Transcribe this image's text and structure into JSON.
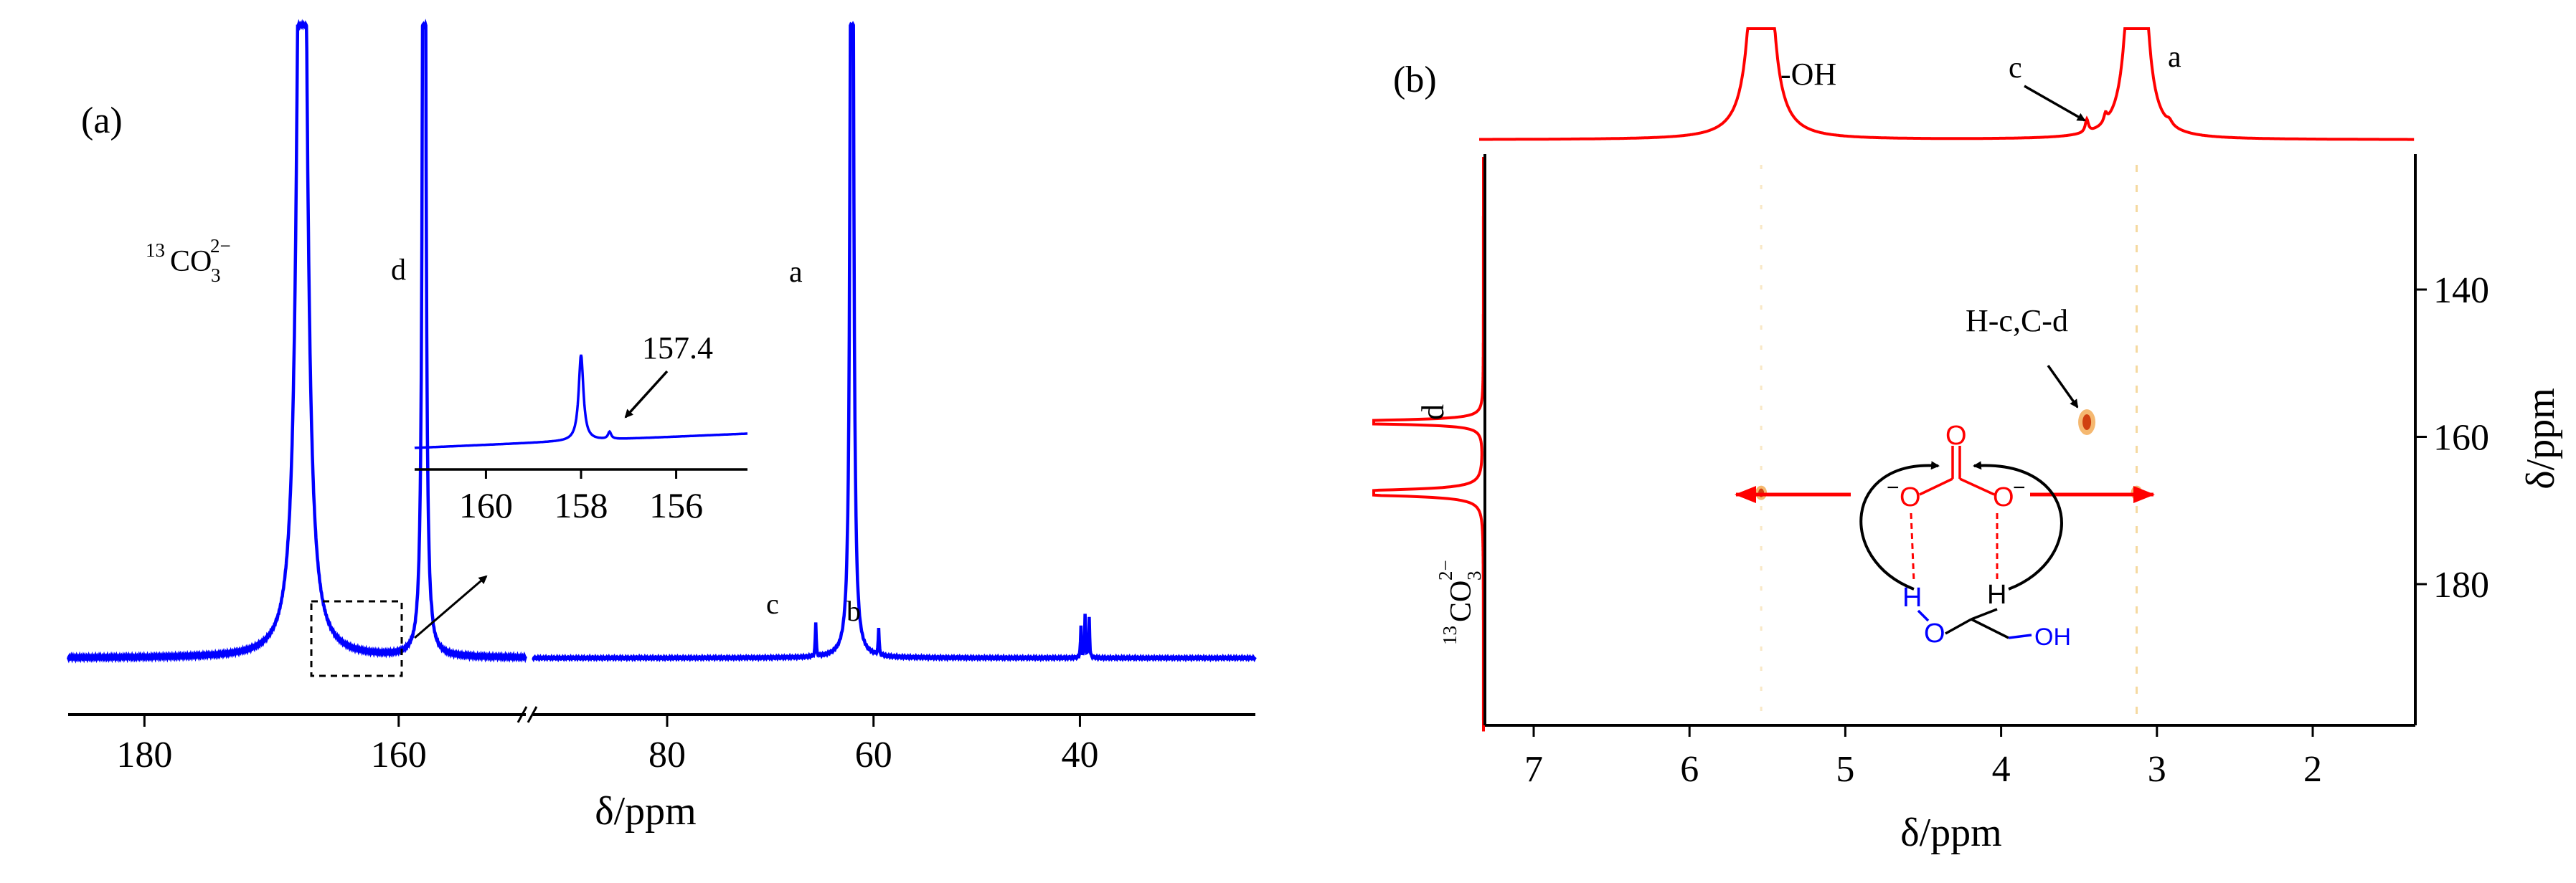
{
  "chart_data": [
    {
      "panel_label": "(a)",
      "type": "line",
      "xlabel": "δ/ppm",
      "x_ticks": [
        180,
        160,
        80,
        60,
        40
      ],
      "axis_segments": [
        [
          186,
          150
        ],
        [
          93,
          23
        ]
      ],
      "axis_break": true,
      "series": [
        {
          "color": "#0000ff",
          "peaks": [
            {
              "x": 167.6,
              "label": "¹³CO₃²⁻"
            },
            {
              "x": 158.0,
              "label": "d"
            },
            {
              "x": 62.1,
              "label": "a"
            },
            {
              "x": 65.6,
              "label": "c"
            },
            {
              "x": 59.5,
              "label": "b"
            },
            {
              "x": 39.5,
              "label": ""
            }
          ]
        }
      ],
      "inset": {
        "x_ticks": [
          160,
          158,
          156
        ],
        "xlim": [
          161.5,
          154.5
        ],
        "peaks": [
          158.0,
          157.4
        ],
        "annotation": "157.4",
        "zoom_box_ppm": [
          162.5,
          155.7
        ]
      }
    },
    {
      "panel_label": "(b)",
      "type": "heatmap",
      "xlabel": "δ/ppm",
      "ylabel": "δ/ppm",
      "x_ticks": [
        7,
        6,
        5,
        4,
        3,
        2
      ],
      "y_ticks": [
        140,
        160,
        180
      ],
      "top_projection": {
        "color": "#ff0000",
        "peaks": [
          {
            "x": 5.54,
            "label": "-OH"
          },
          {
            "x": 3.45,
            "label": "c"
          },
          {
            "x": 3.13,
            "label": "a"
          }
        ]
      },
      "left_projection": {
        "color": "#ff0000",
        "peaks": [
          {
            "y": 158.0,
            "label": "d"
          },
          {
            "y": 167.6,
            "label": "¹³CO₃²⁻"
          }
        ]
      },
      "cross_peaks": [
        {
          "x": 3.45,
          "y": 158.0,
          "label": "H-c,C-d"
        },
        {
          "x": 5.54,
          "y": 167.6,
          "label": ""
        },
        {
          "x": 3.13,
          "y": 167.6,
          "label": ""
        }
      ],
      "molecule": {
        "atoms": [
          "O",
          "O",
          "O",
          "H",
          "H",
          "O",
          "OH"
        ],
        "charges": [
          "−",
          "−"
        ]
      }
    }
  ]
}
